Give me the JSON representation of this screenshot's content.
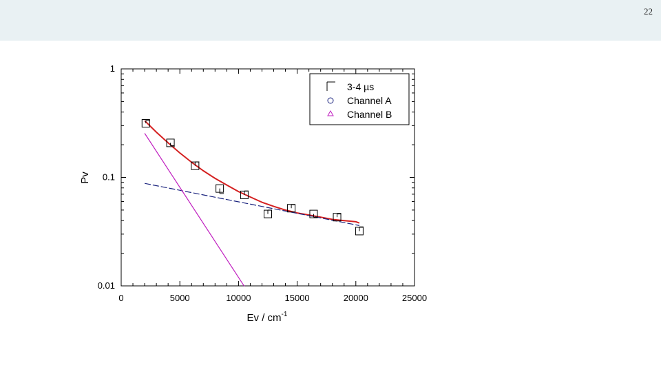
{
  "slide": {
    "number": "22"
  },
  "colors": {
    "header_band": "#e9f1f3",
    "fit_total": "#d42020",
    "fit_channel_a": "#1a237e",
    "fit_channel_b": "#c020c0"
  },
  "chart_data": {
    "type": "scatter",
    "xlabel_main": "Ev / cm",
    "xlabel_sup": "-1",
    "ylabel": "Pv",
    "xlim": [
      0,
      25000
    ],
    "ylim": [
      0.01,
      1
    ],
    "yscale": "log",
    "x_ticks": [
      "0",
      "5000",
      "10000",
      "15000",
      "20000",
      "25000"
    ],
    "y_ticks": [
      "0.01",
      "0.1",
      "1"
    ],
    "legend_position": "top-right",
    "legend": [
      {
        "marker": "square",
        "label": "3-4 µs"
      },
      {
        "marker": "circle",
        "label": "Channel A"
      },
      {
        "marker": "triangle",
        "label": "Channel B"
      }
    ],
    "series": [
      {
        "name": "3-4 µs",
        "x": [
          2100,
          4200,
          6300,
          8400,
          10500,
          12500,
          14500,
          16400,
          18400,
          20300
        ],
        "y": [
          0.315,
          0.208,
          0.128,
          0.079,
          0.069,
          0.046,
          0.052,
          0.046,
          0.043,
          0.032
        ],
        "err": [
          0.02,
          0.012,
          0.011,
          0.008,
          0.006,
          0.004,
          0.004,
          0.003,
          0.003,
          0.003
        ]
      }
    ],
    "fits": [
      {
        "series": "total",
        "x": [
          2000,
          3000,
          4000,
          5000,
          6000,
          7000,
          8000,
          9000,
          10000,
          11000,
          12000,
          13000,
          14000,
          15000,
          16000,
          17000,
          18000,
          19000,
          20000,
          20300
        ],
        "y": [
          0.333,
          0.261,
          0.208,
          0.168,
          0.138,
          0.115,
          0.098,
          0.085,
          0.074,
          0.066,
          0.059,
          0.054,
          0.05,
          0.047,
          0.045,
          0.043,
          0.041,
          0.04,
          0.039,
          0.038
        ]
      },
      {
        "series": "Channel A",
        "x": [
          2000,
          20300
        ],
        "y": [
          0.088,
          0.036
        ]
      },
      {
        "series": "Channel B",
        "x": [
          2000,
          10500
        ],
        "y": [
          0.255,
          0.0099
        ]
      }
    ]
  }
}
